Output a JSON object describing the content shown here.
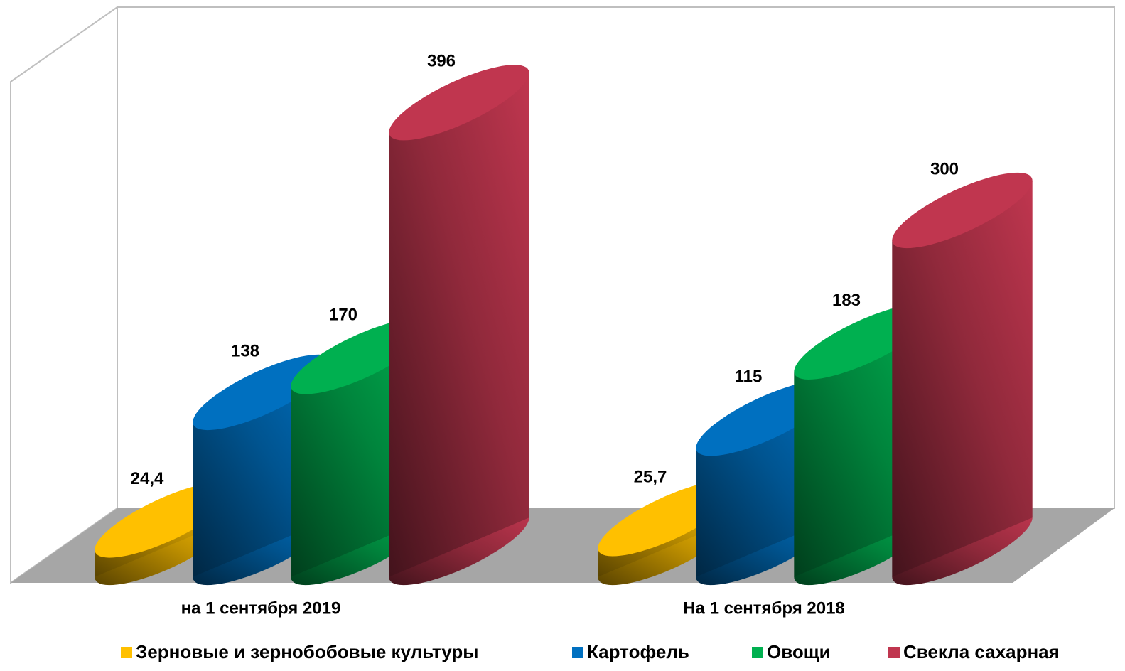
{
  "chart_data": {
    "type": "cylinder",
    "categories": [
      "на 1 сентября 2019",
      "На 1 сентября 2018"
    ],
    "series": [
      {
        "name": "Зерновые и зернобобовые культуры",
        "color": "#ffc000",
        "values": [
          24.4,
          25.7
        ],
        "value_labels": [
          "24,4",
          "25,7"
        ]
      },
      {
        "name": "Картофель",
        "color": "#0070c0",
        "values": [
          138,
          115
        ]
      },
      {
        "name": "Овощи",
        "color": "#00b050",
        "values": [
          170,
          183
        ]
      },
      {
        "name": "Свекла сахарная",
        "color": "#c0364f",
        "values": [
          396,
          300
        ]
      }
    ]
  }
}
